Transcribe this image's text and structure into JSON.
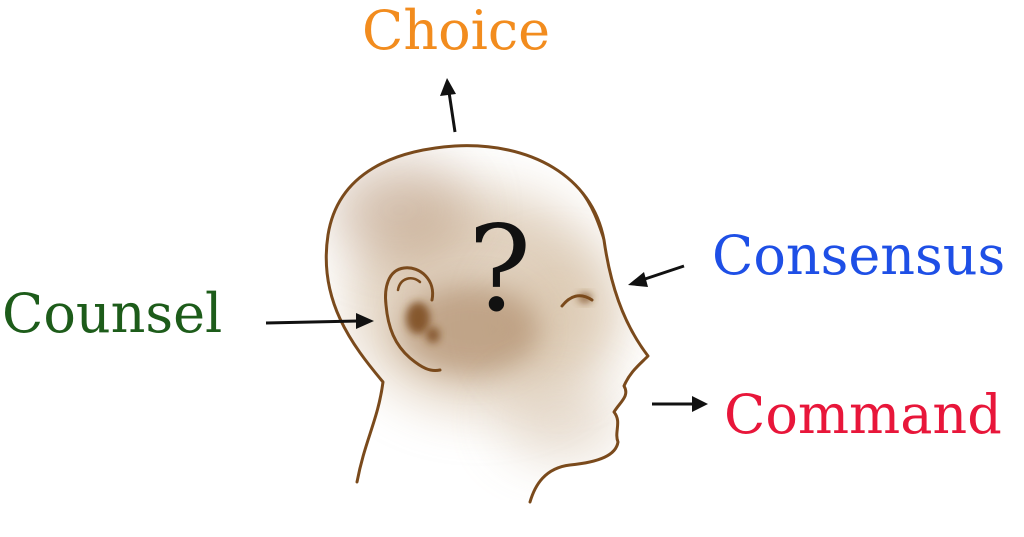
{
  "labels": {
    "choice": "Choice",
    "consensus": "Consensus",
    "counsel": "Counsel",
    "command": "Command"
  },
  "center_symbol": "?",
  "colors": {
    "choice": "#f28c1e",
    "consensus": "#1e4fe6",
    "counsel": "#1d5c1a",
    "command": "#e8163a",
    "head_outline": "#7a4a1c",
    "arrow": "#111111"
  },
  "icons": {
    "head": "head-profile-icon",
    "arrows": "arrow-icon"
  }
}
